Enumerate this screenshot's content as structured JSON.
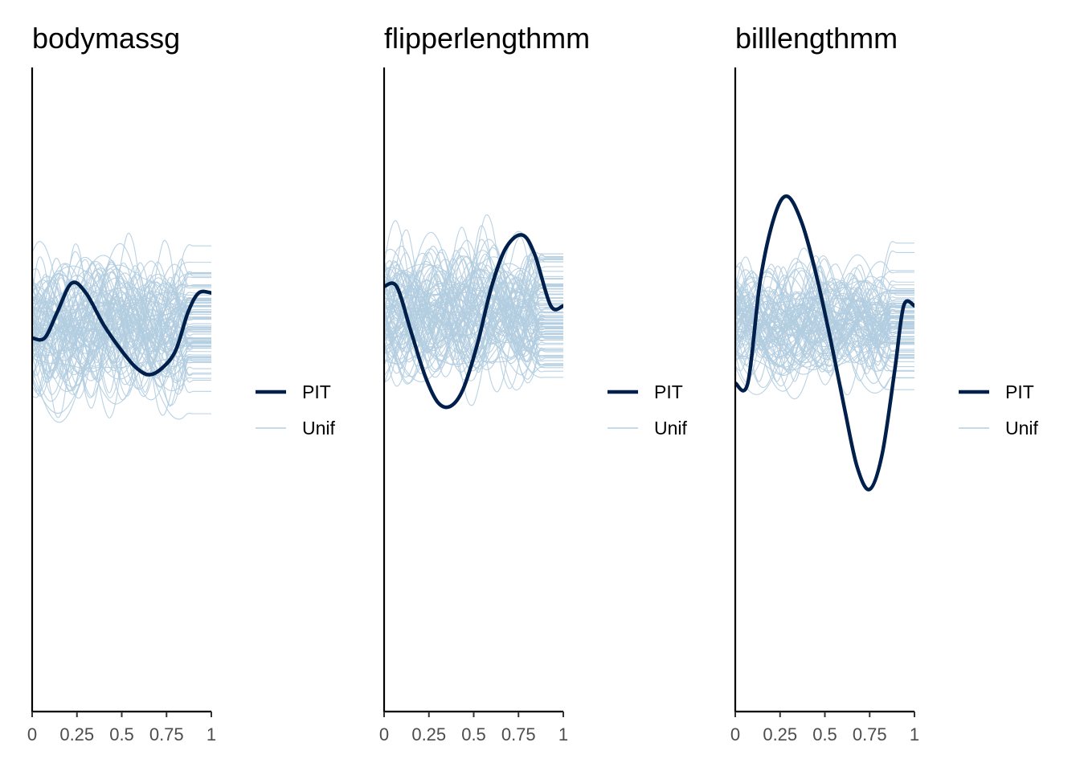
{
  "chart_data": [
    {
      "type": "line",
      "title": "bodymassg",
      "xlabel": "",
      "ylabel": "",
      "xlim": [
        0,
        1
      ],
      "x_ticks": [
        "0",
        "0.25",
        "0.5",
        "0.75",
        "1"
      ],
      "legend": {
        "position": "right",
        "entries": [
          "PIT",
          "Unif"
        ]
      },
      "colors": {
        "PIT": "#011f4b",
        "Unif": "#b3cde0"
      },
      "series": [
        {
          "name": "PIT",
          "x": [
            0,
            0.07,
            0.14,
            0.22,
            0.3,
            0.4,
            0.5,
            0.58,
            0.65,
            0.72,
            0.8,
            0.87,
            0.93,
            1
          ],
          "y": [
            0.42,
            0.42,
            0.38,
            0.335,
            0.35,
            0.4,
            0.44,
            0.466,
            0.477,
            0.468,
            0.44,
            0.38,
            0.35,
            0.35
          ]
        },
        {
          "name": "Unif",
          "x": [
            0,
            1
          ],
          "y": [
            0.215,
            0.6
          ]
        }
      ]
    },
    {
      "type": "line",
      "title": "flipperlengthmm",
      "xlabel": "",
      "ylabel": "",
      "xlim": [
        0,
        1
      ],
      "x_ticks": [
        "0",
        "0.25",
        "0.5",
        "0.75",
        "1"
      ],
      "legend": {
        "position": "right",
        "entries": [
          "PIT",
          "Unif"
        ]
      },
      "colors": {
        "PIT": "#011f4b",
        "Unif": "#b3cde0"
      },
      "series": [
        {
          "name": "PIT",
          "x": [
            0,
            0.07,
            0.15,
            0.23,
            0.3,
            0.37,
            0.44,
            0.52,
            0.6,
            0.68,
            0.77,
            0.84,
            0.93,
            1
          ],
          "y": [
            0.34,
            0.34,
            0.41,
            0.48,
            0.52,
            0.526,
            0.5,
            0.43,
            0.34,
            0.28,
            0.26,
            0.29,
            0.37,
            0.37
          ]
        },
        {
          "name": "Unif",
          "x": [
            0,
            1
          ],
          "y": [
            0.2,
            0.57
          ]
        }
      ]
    },
    {
      "type": "line",
      "title": "billlengthmm",
      "xlabel": "",
      "ylabel": "",
      "xlim": [
        0,
        1
      ],
      "x_ticks": [
        "0",
        "0.25",
        "0.5",
        "0.75",
        "1"
      ],
      "legend": {
        "position": "right",
        "entries": [
          "PIT",
          "Unif"
        ]
      },
      "colors": {
        "PIT": "#011f4b",
        "Unif": "#b3cde0"
      },
      "series": [
        {
          "name": "PIT",
          "x": [
            0,
            0.07,
            0.14,
            0.22,
            0.29,
            0.37,
            0.45,
            0.53,
            0.61,
            0.68,
            0.75,
            0.82,
            0.89,
            0.94,
            1
          ],
          "y": [
            0.49,
            0.49,
            0.33,
            0.23,
            0.2,
            0.24,
            0.32,
            0.42,
            0.53,
            0.62,
            0.655,
            0.6,
            0.47,
            0.37,
            0.37
          ]
        },
        {
          "name": "Unif",
          "x": [
            0,
            1
          ],
          "y": [
            0.23,
            0.55
          ]
        }
      ]
    }
  ]
}
